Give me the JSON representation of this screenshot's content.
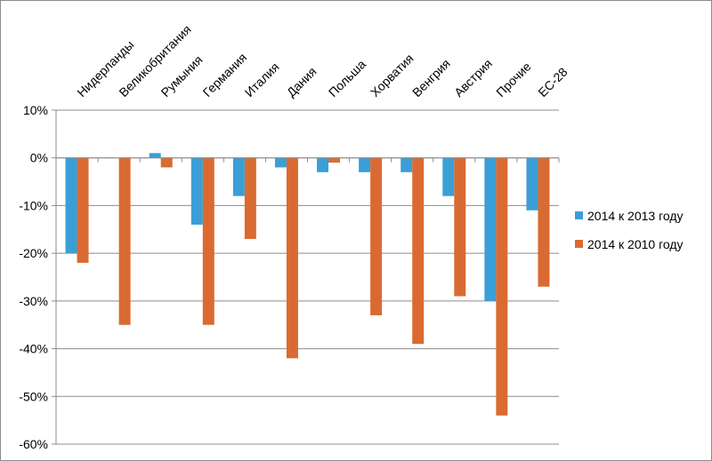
{
  "chart_data": {
    "type": "bar",
    "title": "",
    "xlabel": "",
    "ylabel": "",
    "categories": [
      "Нидерланды",
      "Великобритания",
      "Румыния",
      "Германия",
      "Италия",
      "Дания",
      "Польша",
      "Хорватия",
      "Венгрия",
      "Австрия",
      "Прочие",
      "ЕС-28"
    ],
    "series": [
      {
        "name": "2014 к 2013 году",
        "color": "#3a9fd6",
        "values": [
          -20,
          null,
          1,
          -14,
          -8,
          -2,
          -3,
          -3,
          -3,
          -8,
          -30,
          -11
        ]
      },
      {
        "name": "2014 к 2010 году",
        "color": "#d96b32",
        "values": [
          -22,
          -35,
          -2,
          -35,
          -17,
          -42,
          -1,
          -33,
          -39,
          -29,
          -54,
          -27
        ]
      }
    ],
    "ylim": [
      -60,
      10
    ],
    "ytick_step": 10,
    "ytick_suffix": "%",
    "grid": true,
    "legend_position": "right",
    "x_labels_position": "top-rotated"
  }
}
